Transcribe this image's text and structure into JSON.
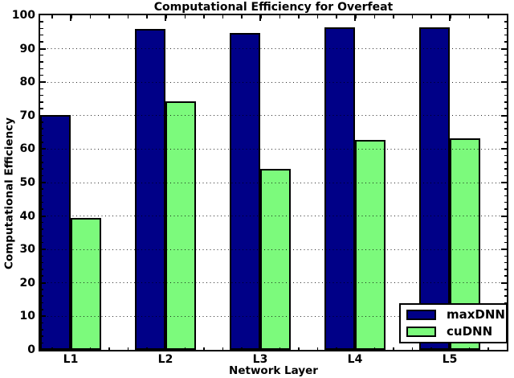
{
  "chart_data": {
    "type": "bar",
    "title": "Computational Efficiency for Overfeat",
    "xlabel": "Network Layer",
    "ylabel": "Computational Efficiency",
    "categories": [
      "L1",
      "L2",
      "L3",
      "L4",
      "L5"
    ],
    "series": [
      {
        "name": "maxDNN",
        "color": "#000087",
        "values": [
          70.3,
          95.8,
          94.6,
          96.3,
          96.5
        ]
      },
      {
        "name": "cuDNN",
        "color": "#7CFA7C",
        "values": [
          39.4,
          74.2,
          54.1,
          62.8,
          63.2
        ]
      }
    ],
    "ylim": [
      0,
      100
    ],
    "ytick_step": 10,
    "y_minor_step": 2,
    "yticks": [
      0,
      10,
      20,
      30,
      40,
      50,
      60,
      70,
      80,
      90,
      100
    ],
    "grid": "horizontal dotted, drawn above bars",
    "legend_position": "lower right",
    "bar_edge_color": "#000000",
    "frame_color": "#000000",
    "background_color": "#ffffff"
  }
}
